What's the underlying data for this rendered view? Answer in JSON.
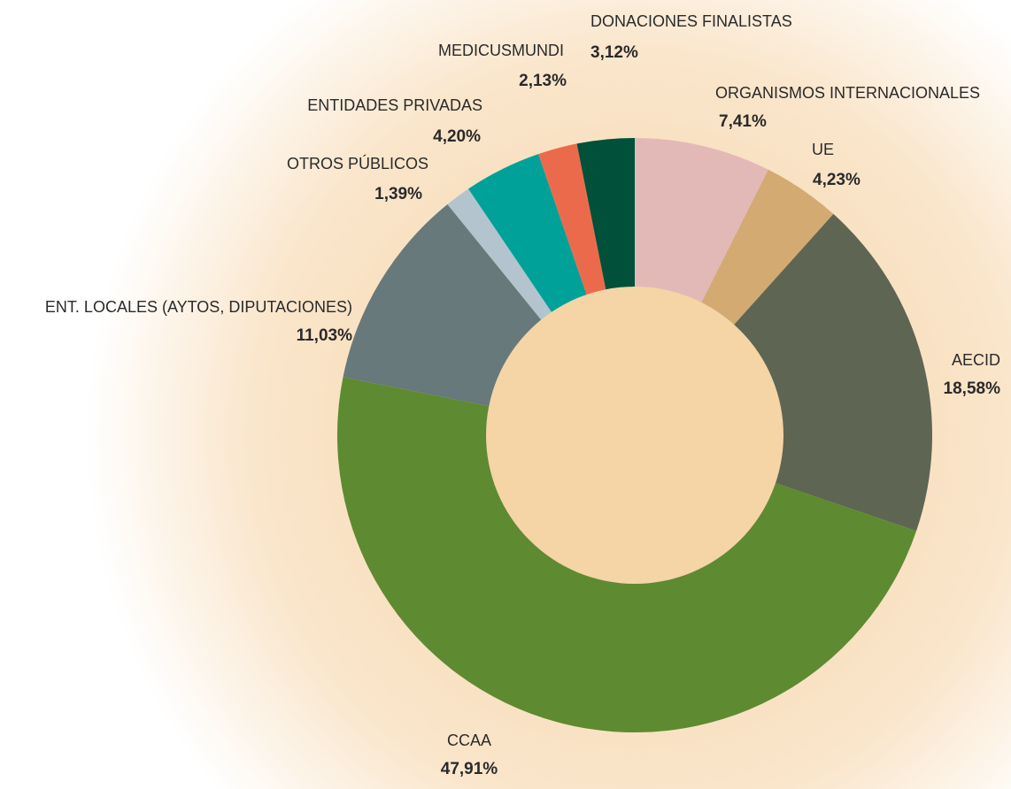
{
  "chart_data": {
    "type": "donut",
    "categories": [
      "ORGANISMOS INTERNACIONALES",
      "UE",
      "AECID",
      "CCAA",
      "ENT. LOCALES (AYTOS, DIPUTACIONES)",
      "OTROS PÚBLICOS",
      "ENTIDADES PRIVADAS",
      "MEDICUSMUNDI",
      "DONACIONES FINALISTAS"
    ],
    "values": [
      7.41,
      4.23,
      18.58,
      47.91,
      11.03,
      1.39,
      4.2,
      2.13,
      3.12
    ],
    "value_labels": [
      "7,41%",
      "4,23%",
      "18,58%",
      "47,91%",
      "11,03%",
      "1,39%",
      "4,20%",
      "2,13%",
      "3,12%"
    ],
    "colors": [
      "#e3b9b7",
      "#d3ab72",
      "#5e6553",
      "#5e8a32",
      "#67797b",
      "#b4c4ce",
      "#00a199",
      "#ec6a4c",
      "#00503a"
    ]
  }
}
